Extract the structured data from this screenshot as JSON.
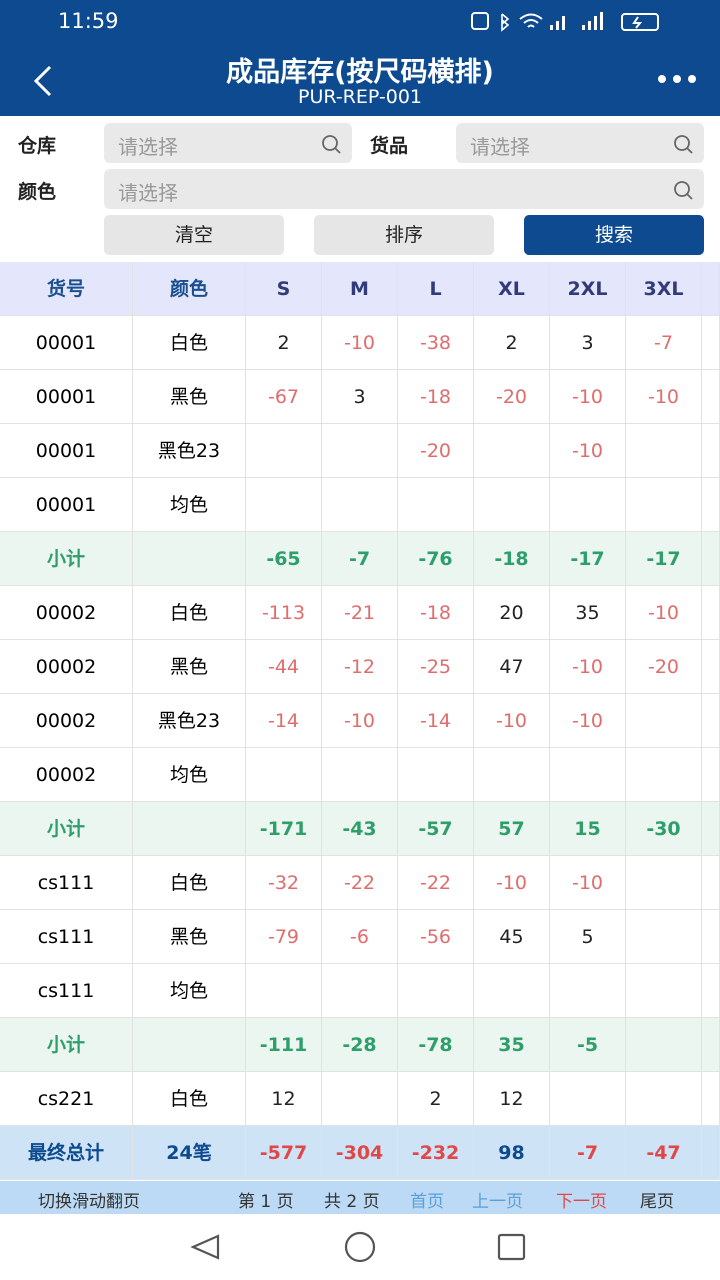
{
  "status_bar": {
    "time": "11:59"
  },
  "header": {
    "title": "成品库存(按尺码横排)",
    "subtitle": "PUR-REP-001"
  },
  "filters": {
    "warehouse_label": "仓库",
    "warehouse_placeholder": "请选择",
    "goods_label": "货品",
    "goods_placeholder": "请选择",
    "color_label": "颜色",
    "color_placeholder": "请选择",
    "buttons": [
      "清空",
      "排序",
      "搜索"
    ]
  },
  "table": {
    "columns": [
      "货号",
      "颜色",
      "S",
      "M",
      "L",
      "XL",
      "2XL",
      "3XL"
    ],
    "rows": [
      {
        "code": "00001",
        "color": "白色",
        "sizes": [
          2,
          -10,
          -38,
          2,
          3,
          -7
        ]
      },
      {
        "code": "00001",
        "color": "黑色",
        "sizes": [
          -67,
          3,
          -18,
          -20,
          -10,
          -10
        ]
      },
      {
        "code": "00001",
        "color": "黑色23",
        "sizes": [
          null,
          null,
          -20,
          null,
          -10,
          null
        ]
      },
      {
        "code": "00001",
        "color": "均色",
        "sizes": [
          null,
          null,
          null,
          null,
          null,
          null
        ]
      },
      {
        "kind": "subtotal",
        "code": "小计",
        "color": null,
        "sizes": [
          -65,
          -7,
          -76,
          -18,
          -17,
          -17
        ]
      },
      {
        "code": "00002",
        "color": "白色",
        "sizes": [
          -113,
          -21,
          -18,
          20,
          35,
          -10
        ]
      },
      {
        "code": "00002",
        "color": "黑色",
        "sizes": [
          -44,
          -12,
          -25,
          47,
          -10,
          -20
        ]
      },
      {
        "code": "00002",
        "color": "黑色23",
        "sizes": [
          -14,
          -10,
          -14,
          -10,
          -10,
          null
        ]
      },
      {
        "code": "00002",
        "color": "均色",
        "sizes": [
          null,
          null,
          null,
          null,
          null,
          null
        ]
      },
      {
        "kind": "subtotal",
        "code": "小计",
        "color": null,
        "sizes": [
          -171,
          -43,
          -57,
          57,
          15,
          -30
        ]
      },
      {
        "code": "cs111",
        "color": "白色",
        "sizes": [
          -32,
          -22,
          -22,
          -10,
          -10,
          null
        ]
      },
      {
        "code": "cs111",
        "color": "黑色",
        "sizes": [
          -79,
          -6,
          -56,
          45,
          5,
          null
        ]
      },
      {
        "code": "cs111",
        "color": "均色",
        "sizes": [
          null,
          null,
          null,
          null,
          null,
          null
        ]
      },
      {
        "kind": "subtotal",
        "code": "小计",
        "color": null,
        "sizes": [
          -111,
          -28,
          -78,
          35,
          -5,
          null
        ]
      },
      {
        "code": "cs221",
        "color": "白色",
        "sizes": [
          12,
          null,
          2,
          12,
          null,
          null
        ]
      }
    ],
    "total": {
      "label": "最终总计",
      "count": "24笔",
      "sizes": [
        -577,
        -304,
        -232,
        98,
        -7,
        -47
      ]
    }
  },
  "pager": {
    "toggle": "切换滑动翻页",
    "current": "第 1 页",
    "total": "共 2 页",
    "first": "首页",
    "prev": "上一页",
    "next": "下一页",
    "last": "尾页"
  }
}
